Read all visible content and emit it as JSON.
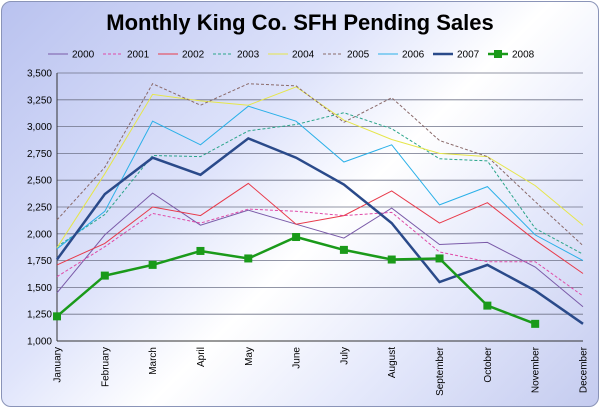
{
  "chart_data": {
    "type": "line",
    "title": "Monthly King Co. SFH Pending Sales",
    "xlabel": "",
    "ylabel": "",
    "categories": [
      "January",
      "February",
      "March",
      "April",
      "May",
      "June",
      "July",
      "August",
      "September",
      "October",
      "November",
      "December"
    ],
    "ylim": [
      1000,
      3500
    ],
    "yticks": [
      "1,000",
      "1,250",
      "1,500",
      "1,750",
      "2,000",
      "2,250",
      "2,500",
      "2,750",
      "3,000",
      "3,250",
      "3,500"
    ],
    "grid": true,
    "legend_position": "top",
    "series": [
      {
        "name": "2000",
        "color": "#7a5aa8",
        "style": "solid",
        "width": 1,
        "values": [
          1450,
          1990,
          2380,
          2080,
          2220,
          2090,
          1960,
          2240,
          1900,
          1920,
          1690,
          1320
        ]
      },
      {
        "name": "2001",
        "color": "#e04aa8",
        "style": "dashed",
        "width": 1,
        "values": [
          1600,
          1880,
          2190,
          2100,
          2230,
          2210,
          2170,
          2200,
          1830,
          1740,
          1740,
          1420
        ]
      },
      {
        "name": "2002",
        "color": "#e83a4a",
        "style": "solid",
        "width": 1,
        "values": [
          1710,
          1910,
          2250,
          2170,
          2470,
          2090,
          2170,
          2400,
          2100,
          2290,
          1940,
          1630
        ]
      },
      {
        "name": "2003",
        "color": "#2aa58a",
        "style": "dashed",
        "width": 1,
        "values": [
          1880,
          2180,
          2730,
          2720,
          2960,
          3020,
          3130,
          2980,
          2700,
          2680,
          2050,
          1810
        ]
      },
      {
        "name": "2004",
        "color": "#e6e64a",
        "style": "solid",
        "width": 1,
        "values": [
          1870,
          2560,
          3300,
          3240,
          3200,
          3370,
          3060,
          2880,
          2750,
          2720,
          2450,
          2080
        ]
      },
      {
        "name": "2005",
        "color": "#8a6a6a",
        "style": "dashed",
        "width": 1,
        "values": [
          2130,
          2620,
          3400,
          3200,
          3400,
          3380,
          3040,
          3270,
          2870,
          2720,
          2300,
          1890
        ]
      },
      {
        "name": "2006",
        "color": "#2ab0e8",
        "style": "solid",
        "width": 1,
        "values": [
          1860,
          2210,
          3050,
          2830,
          3190,
          3050,
          2670,
          2830,
          2270,
          2440,
          1990,
          1750
        ]
      },
      {
        "name": "2007",
        "color": "#2a4a8a",
        "style": "solid",
        "width": 2.5,
        "values": [
          1760,
          2370,
          2710,
          2550,
          2890,
          2710,
          2460,
          2100,
          1550,
          1710,
          1470,
          1160
        ]
      },
      {
        "name": "2008",
        "color": "#1a9a1a",
        "style": "solid",
        "width": 2.5,
        "marker": "square",
        "values": [
          1230,
          1610,
          1710,
          1840,
          1770,
          1970,
          1850,
          1760,
          1770,
          1330,
          1160,
          null
        ]
      }
    ]
  }
}
